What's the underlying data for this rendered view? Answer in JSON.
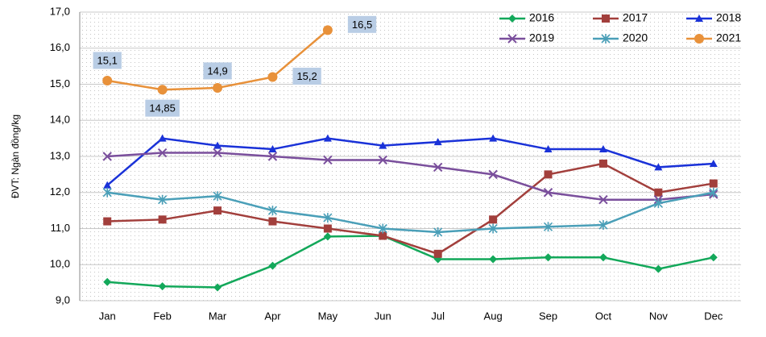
{
  "chart_data": {
    "type": "line",
    "y_label": "ĐVT: Ngàn đồng/kg",
    "categories": [
      "Jan",
      "Feb",
      "Mar",
      "Apr",
      "May",
      "Jun",
      "Jul",
      "Aug",
      "Sep",
      "Oct",
      "Nov",
      "Dec"
    ],
    "series": [
      {
        "name": "2016",
        "color": "#13a85a",
        "marker": "diamond",
        "values": [
          9.52,
          9.4,
          9.37,
          9.97,
          10.78,
          10.8,
          10.15,
          10.15,
          10.2,
          10.2,
          9.88,
          10.2
        ]
      },
      {
        "name": "2017",
        "color": "#a23f3c",
        "marker": "square",
        "values": [
          11.2,
          11.25,
          11.5,
          11.2,
          11.0,
          10.8,
          10.3,
          11.25,
          12.5,
          12.8,
          12.0,
          12.25
        ]
      },
      {
        "name": "2018",
        "color": "#1a32d8",
        "marker": "triangle",
        "values": [
          12.2,
          13.5,
          13.3,
          13.2,
          13.5,
          13.3,
          13.4,
          13.5,
          13.2,
          13.2,
          12.7,
          12.8
        ]
      },
      {
        "name": "2019",
        "color": "#7a4f9c",
        "marker": "x",
        "values": [
          13.0,
          13.1,
          13.1,
          13.0,
          12.9,
          12.9,
          12.7,
          12.5,
          12.0,
          11.8,
          11.8,
          11.95
        ]
      },
      {
        "name": "2020",
        "color": "#4a9fb8",
        "marker": "star",
        "values": [
          12.0,
          11.8,
          11.9,
          11.5,
          11.3,
          11.0,
          10.9,
          11.0,
          11.05,
          11.1,
          11.7,
          12.0
        ]
      },
      {
        "name": "2021",
        "color": "#e8913a",
        "marker": "circle",
        "values": [
          15.1,
          14.85,
          14.9,
          15.2,
          16.5,
          null,
          null,
          null,
          null,
          null,
          null,
          null
        ],
        "value_labels": [
          "15,1",
          "14,85",
          "14,9",
          "15,2",
          "16,5",
          null,
          null,
          null,
          null,
          null,
          null,
          null
        ]
      }
    ],
    "ylim": [
      9,
      17
    ],
    "yticks": [
      {
        "value": 9,
        "label": "9,0"
      },
      {
        "value": 10,
        "label": "10,0"
      },
      {
        "value": 11,
        "label": "11,0"
      },
      {
        "value": 12,
        "label": "12,0"
      },
      {
        "value": 13,
        "label": "13,0"
      },
      {
        "value": 14,
        "label": "14,0"
      },
      {
        "value": 15,
        "label": "15,0"
      },
      {
        "value": 16,
        "label": "16,0"
      },
      {
        "value": 17,
        "label": "17,0"
      }
    ],
    "grid": true,
    "legend": "top-right"
  }
}
